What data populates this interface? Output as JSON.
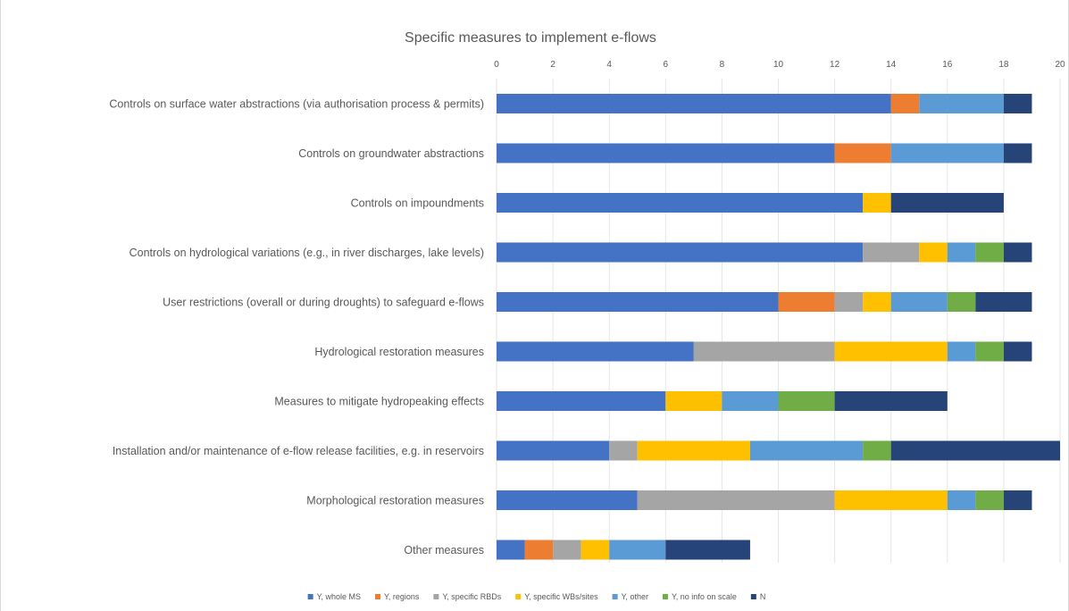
{
  "chart_data": {
    "type": "bar",
    "orientation": "horizontal",
    "stacked": true,
    "title": "Specific measures to implement  e-flows",
    "xlabel": "",
    "ylabel": "",
    "xlim": [
      0,
      20
    ],
    "x_ticks": [
      0,
      2,
      4,
      6,
      8,
      10,
      12,
      14,
      16,
      18,
      20
    ],
    "x_axis_position": "top",
    "grid": true,
    "legend_position": "bottom",
    "categories": [
      "Controls on surface water abstractions (via authorisation process & permits)",
      "Controls on groundwater abstractions",
      "Controls on impoundments",
      "Controls on hydrological variations (e.g., in river discharges, lake levels)",
      "User restrictions (overall or during droughts) to safeguard e-flows",
      "Hydrological restoration measures",
      "Measures to mitigate hydropeaking effects",
      "Installation and/or maintenance of e-flow release facilities, e.g. in reservoirs",
      "Morphological restoration measures",
      "Other measures"
    ],
    "series": [
      {
        "name": "Y, whole MS",
        "color": "#4472c4",
        "values": [
          14,
          12,
          13,
          13,
          10,
          7,
          6,
          4,
          5,
          1
        ]
      },
      {
        "name": "Y, regions",
        "color": "#ed7d31",
        "values": [
          1,
          2,
          0,
          0,
          2,
          0,
          0,
          0,
          0,
          1
        ]
      },
      {
        "name": "Y, specific RBDs",
        "color": "#a5a5a5",
        "values": [
          0,
          0,
          0,
          2,
          1,
          5,
          0,
          1,
          7,
          1
        ]
      },
      {
        "name": "Y, specific WBs/sites",
        "color": "#ffc000",
        "values": [
          0,
          0,
          1,
          1,
          1,
          4,
          2,
          4,
          4,
          1
        ]
      },
      {
        "name": "Y, other",
        "color": "#5b9bd5",
        "values": [
          3,
          4,
          0,
          1,
          2,
          1,
          2,
          4,
          1,
          2
        ]
      },
      {
        "name": "Y, no info on scale",
        "color": "#70ad47",
        "values": [
          0,
          0,
          0,
          1,
          1,
          1,
          2,
          1,
          1,
          0
        ]
      },
      {
        "name": "N",
        "color": "#264478",
        "values": [
          1,
          1,
          4,
          1,
          2,
          1,
          4,
          6,
          1,
          3
        ]
      }
    ]
  }
}
